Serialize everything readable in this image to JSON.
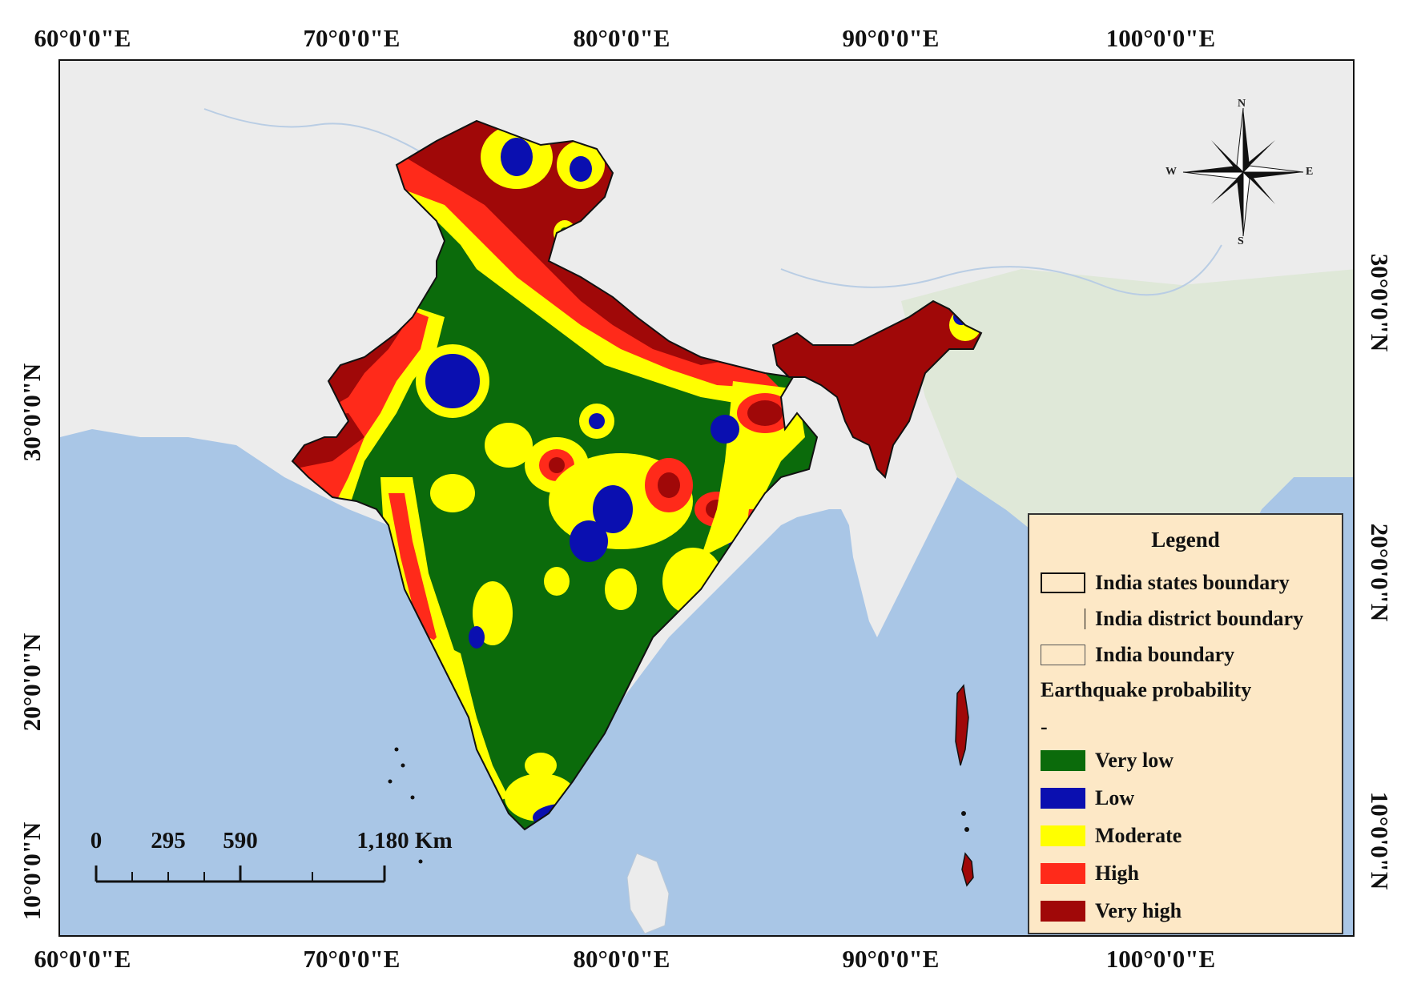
{
  "axes": {
    "top_ticks": [
      "60°0'0\"E",
      "70°0'0\"E",
      "80°0'0\"E",
      "90°0'0\"E",
      "100°0'0\"E"
    ],
    "bottom_ticks": [
      "60°0'0\"E",
      "70°0'0\"E",
      "80°0'0\"E",
      "90°0'0\"E",
      "100°0'0\"E"
    ],
    "left_ticks": [
      "30°0'0\"N",
      "20°0'0\"N",
      "10°0'0\"N"
    ],
    "right_ticks": [
      "30°0'0\"N",
      "20°0'0\"N",
      "10°0'0\"N"
    ]
  },
  "compass": {
    "n": "N",
    "s": "S",
    "e": "E",
    "w": "W"
  },
  "scale_bar": {
    "labels": [
      "0",
      "295",
      "590",
      "1,180 Km"
    ]
  },
  "legend": {
    "title": "Legend",
    "boundaries": [
      "India states boundary",
      "India district boundary",
      "India boundary"
    ],
    "subtitle": "Earthquake probability",
    "dash": "-",
    "classes": [
      {
        "label": "Very low",
        "color": "#0b6b0b"
      },
      {
        "label": "Low",
        "color": "#0a0fb0"
      },
      {
        "label": "Moderate",
        "color": "#ffff00"
      },
      {
        "label": "High",
        "color": "#ff2a1a"
      },
      {
        "label": "Very high",
        "color": "#a00808"
      }
    ]
  },
  "colors": {
    "sea": "#a9c6e6",
    "land": "#ececec",
    "land_green": "#dfe8d8"
  }
}
